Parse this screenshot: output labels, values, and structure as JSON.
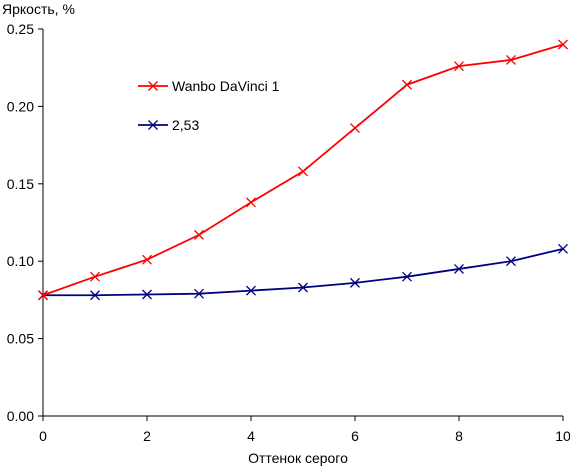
{
  "chart_data": {
    "type": "line",
    "title": "",
    "ylabel": "Яркость, %",
    "xlabel": "Оттенок серого",
    "xlim": [
      0,
      10
    ],
    "ylim": [
      0,
      0.25
    ],
    "x_ticks": [
      0,
      2,
      4,
      6,
      8,
      10
    ],
    "y_ticks": [
      "0.00",
      "0.05",
      "0.10",
      "0.15",
      "0.20",
      "0.25"
    ],
    "grid": false,
    "legend_position": "upper-left-inside",
    "x": [
      0,
      1,
      2,
      3,
      4,
      5,
      6,
      7,
      8,
      9,
      10
    ],
    "series": [
      {
        "name": "Wanbo DaVinci 1",
        "color": "#ff0000",
        "marker": "x",
        "values": [
          0.078,
          0.09,
          0.101,
          0.117,
          0.138,
          0.158,
          0.186,
          0.214,
          0.226,
          0.23,
          0.24
        ]
      },
      {
        "name": "2,53",
        "color": "#000080",
        "marker": "x",
        "values": [
          0.078,
          0.078,
          0.0785,
          0.079,
          0.081,
          0.083,
          0.086,
          0.09,
          0.095,
          0.1,
          0.108
        ]
      }
    ]
  }
}
